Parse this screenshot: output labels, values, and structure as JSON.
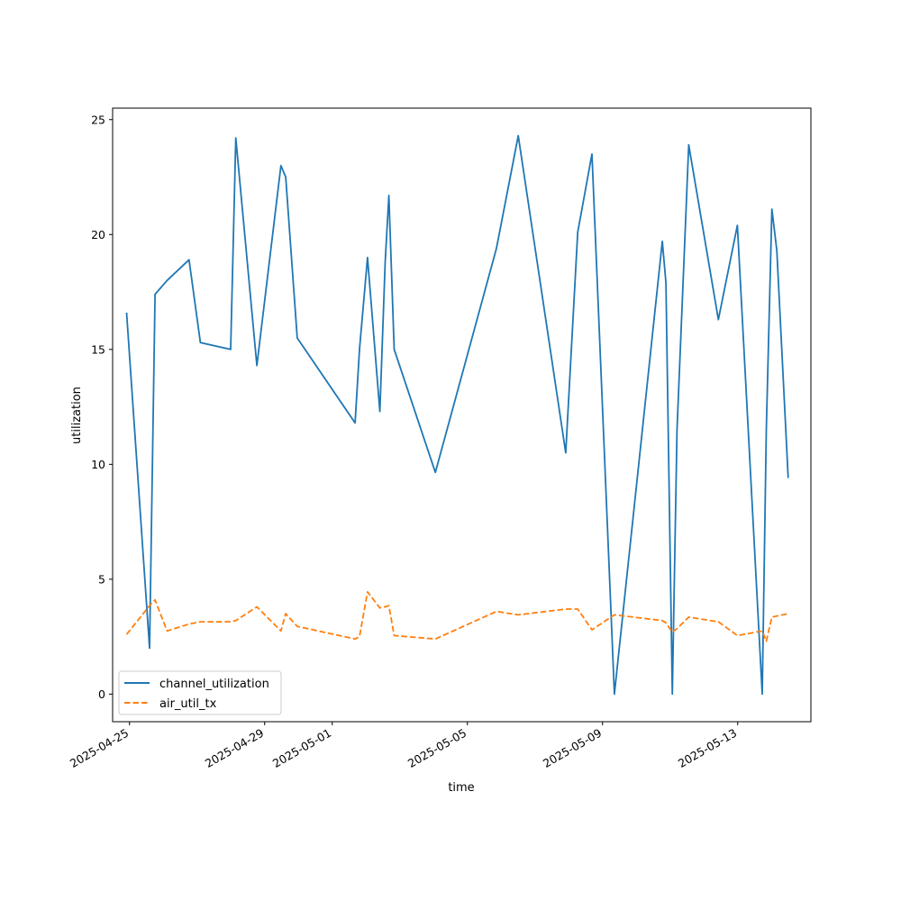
{
  "chart_data": {
    "type": "line",
    "xlabel": "time",
    "ylabel": "utilization",
    "xlim": [
      "2025-04-24T12:00",
      "2025-05-15T04:00"
    ],
    "ylim": [
      -1.2,
      25.5
    ],
    "x_ticks": [
      "2025-04-25",
      "2025-04-29",
      "2025-05-01",
      "2025-05-05",
      "2025-05-09",
      "2025-05-13"
    ],
    "y_ticks": [
      0,
      5,
      10,
      15,
      20,
      25
    ],
    "grid": false,
    "legend_position": "lower-left",
    "series": [
      {
        "name": "channel_utilization",
        "color": "#1f77b4",
        "style": "solid",
        "points": [
          [
            "2025-04-24T21:55",
            16.6
          ],
          [
            "2025-04-25T14:15",
            2.0
          ],
          [
            "2025-04-25T18:08",
            17.4
          ],
          [
            "2025-04-26T02:38",
            18.0
          ],
          [
            "2025-04-26T18:18",
            18.9
          ],
          [
            "2025-04-27T02:20",
            15.3
          ],
          [
            "2025-04-27T23:52",
            15.0
          ],
          [
            "2025-04-28T03:30",
            24.2
          ],
          [
            "2025-04-28T18:26",
            14.3
          ],
          [
            "2025-04-29T11:35",
            23.0
          ],
          [
            "2025-04-29T14:57",
            22.5
          ],
          [
            "2025-04-29T23:07",
            15.5
          ],
          [
            "2025-05-01T16:12",
            11.8
          ],
          [
            "2025-05-01T19:23",
            15.0
          ],
          [
            "2025-05-02T01:04",
            19.0
          ],
          [
            "2025-05-02T09:49",
            12.3
          ],
          [
            "2025-05-02T13:37",
            18.8
          ],
          [
            "2025-05-02T16:12",
            21.7
          ],
          [
            "2025-05-02T20:00",
            15.0
          ],
          [
            "2025-05-04T01:13",
            9.65
          ],
          [
            "2025-05-05T20:38",
            19.4
          ],
          [
            "2025-05-06T12:07",
            24.3
          ],
          [
            "2025-05-07T21:50",
            10.5
          ],
          [
            "2025-05-08T06:22",
            20.1
          ],
          [
            "2025-05-08T16:28",
            23.5
          ],
          [
            "2025-05-09T08:26",
            0.0
          ],
          [
            "2025-05-10T18:26",
            19.7
          ],
          [
            "2025-05-10T21:00",
            17.9
          ],
          [
            "2025-05-11T01:35",
            0.0
          ],
          [
            "2025-05-11T04:52",
            11.5
          ],
          [
            "2025-05-11T13:14",
            23.9
          ],
          [
            "2025-05-12T10:15",
            16.3
          ],
          [
            "2025-05-12T23:47",
            20.4
          ],
          [
            "2025-05-13T17:28",
            0.0
          ],
          [
            "2025-05-13T20:21",
            11.5
          ],
          [
            "2025-05-14T00:16",
            21.1
          ],
          [
            "2025-05-14T03:49",
            19.3
          ],
          [
            "2025-05-14T11:51",
            9.4
          ]
        ]
      },
      {
        "name": "air_util_tx",
        "color": "#ff7f0e",
        "style": "dashed",
        "points": [
          [
            "2025-04-24T21:55",
            2.6
          ],
          [
            "2025-04-25T14:15",
            3.85
          ],
          [
            "2025-04-25T18:08",
            4.1
          ],
          [
            "2025-04-26T02:38",
            2.75
          ],
          [
            "2025-04-26T18:18",
            3.05
          ],
          [
            "2025-04-27T02:20",
            3.15
          ],
          [
            "2025-04-27T23:52",
            3.15
          ],
          [
            "2025-04-28T03:30",
            3.2
          ],
          [
            "2025-04-28T18:26",
            3.8
          ],
          [
            "2025-04-29T11:35",
            2.75
          ],
          [
            "2025-04-29T14:57",
            3.5
          ],
          [
            "2025-04-29T23:07",
            2.95
          ],
          [
            "2025-05-01T16:12",
            2.4
          ],
          [
            "2025-05-01T19:23",
            2.5
          ],
          [
            "2025-05-02T01:04",
            4.45
          ],
          [
            "2025-05-02T09:49",
            3.75
          ],
          [
            "2025-05-02T13:37",
            3.8
          ],
          [
            "2025-05-02T16:12",
            3.85
          ],
          [
            "2025-05-02T20:00",
            2.55
          ],
          [
            "2025-05-04T01:13",
            2.4
          ],
          [
            "2025-05-05T20:38",
            3.6
          ],
          [
            "2025-05-06T12:07",
            3.45
          ],
          [
            "2025-05-07T21:50",
            3.7
          ],
          [
            "2025-05-08T06:22",
            3.7
          ],
          [
            "2025-05-08T16:28",
            2.8
          ],
          [
            "2025-05-09T08:26",
            3.45
          ],
          [
            "2025-05-10T18:26",
            3.2
          ],
          [
            "2025-05-10T21:00",
            3.1
          ],
          [
            "2025-05-11T01:35",
            2.7
          ],
          [
            "2025-05-11T04:52",
            2.85
          ],
          [
            "2025-05-11T13:14",
            3.35
          ],
          [
            "2025-05-12T10:15",
            3.15
          ],
          [
            "2025-05-12T23:47",
            2.55
          ],
          [
            "2025-05-13T17:28",
            2.75
          ],
          [
            "2025-05-13T20:21",
            2.3
          ],
          [
            "2025-05-14T00:16",
            3.35
          ],
          [
            "2025-05-14T03:49",
            3.4
          ],
          [
            "2025-05-14T11:51",
            3.5
          ]
        ]
      }
    ]
  }
}
